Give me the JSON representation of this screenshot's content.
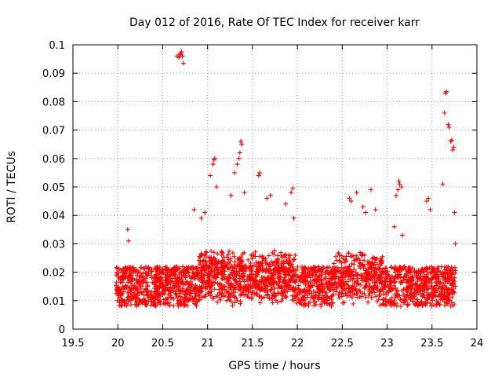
{
  "chart_data": {
    "type": "scatter",
    "title": "Day 012 of 2016, Rate Of TEC Index for receiver karr",
    "xlabel": "GPS time / hours",
    "ylabel": "ROTI / TECUs",
    "xlim": [
      19.5,
      24
    ],
    "ylim": [
      0,
      0.1
    ],
    "grid": true,
    "marker": "plus",
    "color": "#ff0000",
    "x_ticks": [
      {
        "value": 19.5,
        "label": "19.5"
      },
      {
        "value": 20,
        "label": "20"
      },
      {
        "value": 20.5,
        "label": "20.5"
      },
      {
        "value": 21,
        "label": "21"
      },
      {
        "value": 21.5,
        "label": "21.5"
      },
      {
        "value": 22,
        "label": "22"
      },
      {
        "value": 22.5,
        "label": "22.5"
      },
      {
        "value": 23,
        "label": "23"
      },
      {
        "value": 23.5,
        "label": "23.5"
      },
      {
        "value": 24,
        "label": "24"
      }
    ],
    "y_ticks": [
      {
        "value": 0,
        "label": "0"
      },
      {
        "value": 0.01,
        "label": "0.01"
      },
      {
        "value": 0.02,
        "label": "0.02"
      },
      {
        "value": 0.03,
        "label": "0.03"
      },
      {
        "value": 0.04,
        "label": "0.04"
      },
      {
        "value": 0.05,
        "label": "0.05"
      },
      {
        "value": 0.06,
        "label": "0.06"
      },
      {
        "value": 0.07,
        "label": "0.07"
      },
      {
        "value": 0.08,
        "label": "0.08"
      },
      {
        "value": 0.09,
        "label": "0.09"
      },
      {
        "value": 0.1,
        "label": "0.1"
      }
    ],
    "x_range_observed": [
      19.98,
      23.76
    ],
    "baseline_band": [
      0.005,
      0.03
    ],
    "outliers": [
      {
        "x": 20.66,
        "y": 0.096
      },
      {
        "x": 20.68,
        "y": 0.0955
      },
      {
        "x": 20.69,
        "y": 0.0965
      },
      {
        "x": 20.7,
        "y": 0.097
      },
      {
        "x": 20.71,
        "y": 0.0975
      },
      {
        "x": 20.72,
        "y": 0.096
      },
      {
        "x": 20.73,
        "y": 0.0935
      },
      {
        "x": 20.11,
        "y": 0.035
      },
      {
        "x": 20.12,
        "y": 0.031
      },
      {
        "x": 20.85,
        "y": 0.042
      },
      {
        "x": 20.93,
        "y": 0.039
      },
      {
        "x": 20.97,
        "y": 0.041
      },
      {
        "x": 21.03,
        "y": 0.054
      },
      {
        "x": 21.06,
        "y": 0.058
      },
      {
        "x": 21.07,
        "y": 0.0595
      },
      {
        "x": 21.08,
        "y": 0.06
      },
      {
        "x": 21.1,
        "y": 0.05
      },
      {
        "x": 21.26,
        "y": 0.047
      },
      {
        "x": 21.3,
        "y": 0.055
      },
      {
        "x": 21.33,
        "y": 0.058
      },
      {
        "x": 21.35,
        "y": 0.06
      },
      {
        "x": 21.36,
        "y": 0.062
      },
      {
        "x": 21.37,
        "y": 0.066
      },
      {
        "x": 21.38,
        "y": 0.065
      },
      {
        "x": 21.41,
        "y": 0.048
      },
      {
        "x": 21.57,
        "y": 0.054
      },
      {
        "x": 21.58,
        "y": 0.055
      },
      {
        "x": 21.66,
        "y": 0.046
      },
      {
        "x": 21.7,
        "y": 0.047
      },
      {
        "x": 21.87,
        "y": 0.044
      },
      {
        "x": 21.93,
        "y": 0.048
      },
      {
        "x": 21.95,
        "y": 0.0495
      },
      {
        "x": 21.96,
        "y": 0.039
      },
      {
        "x": 22.58,
        "y": 0.046
      },
      {
        "x": 22.6,
        "y": 0.045
      },
      {
        "x": 22.66,
        "y": 0.048
      },
      {
        "x": 22.73,
        "y": 0.043
      },
      {
        "x": 22.76,
        "y": 0.041
      },
      {
        "x": 22.82,
        "y": 0.049
      },
      {
        "x": 22.87,
        "y": 0.042
      },
      {
        "x": 23.08,
        "y": 0.036
      },
      {
        "x": 23.1,
        "y": 0.047
      },
      {
        "x": 23.12,
        "y": 0.049
      },
      {
        "x": 23.13,
        "y": 0.052
      },
      {
        "x": 23.14,
        "y": 0.051
      },
      {
        "x": 23.16,
        "y": 0.05
      },
      {
        "x": 23.17,
        "y": 0.033
      },
      {
        "x": 23.44,
        "y": 0.045
      },
      {
        "x": 23.46,
        "y": 0.046
      },
      {
        "x": 23.48,
        "y": 0.042
      },
      {
        "x": 23.62,
        "y": 0.051
      },
      {
        "x": 23.64,
        "y": 0.076
      },
      {
        "x": 23.65,
        "y": 0.083
      },
      {
        "x": 23.66,
        "y": 0.0835
      },
      {
        "x": 23.68,
        "y": 0.072
      },
      {
        "x": 23.69,
        "y": 0.071
      },
      {
        "x": 23.71,
        "y": 0.066
      },
      {
        "x": 23.72,
        "y": 0.0665
      },
      {
        "x": 23.73,
        "y": 0.063
      },
      {
        "x": 23.74,
        "y": 0.064
      },
      {
        "x": 23.75,
        "y": 0.041
      },
      {
        "x": 23.76,
        "y": 0.03
      }
    ]
  }
}
